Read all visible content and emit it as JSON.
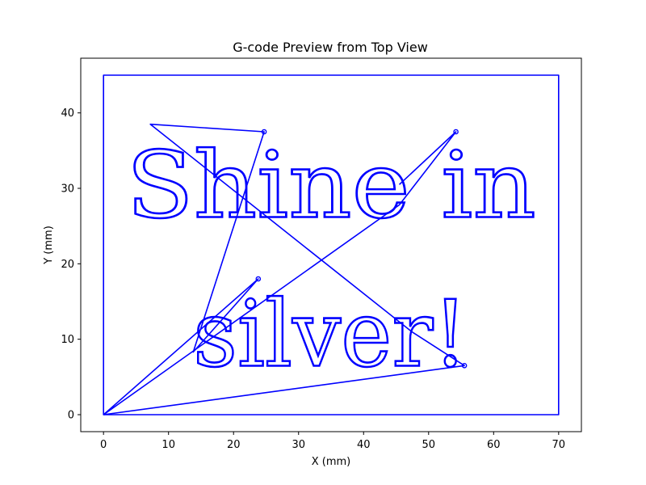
{
  "chart_data": {
    "type": "line",
    "title": "G-code Preview from Top View",
    "xlabel": "X (mm)",
    "ylabel": "Y (mm)",
    "xlim": [
      -3.5,
      73.5
    ],
    "ylim": [
      -2.25,
      47.25
    ],
    "xticks": [
      0,
      10,
      20,
      30,
      40,
      50,
      60,
      70
    ],
    "yticks": [
      0,
      10,
      20,
      30,
      40
    ],
    "grid": false,
    "line_color": "#0000ff",
    "series": [
      {
        "kind": "border",
        "x": [
          0,
          70,
          70,
          0,
          0
        ],
        "y": [
          0,
          0,
          45,
          45,
          0
        ]
      },
      {
        "kind": "travel",
        "x": [
          0,
          23.8,
          13.8,
          24.7,
          7.2,
          47.4,
          55.5,
          0,
          45.5,
          54.2,
          45.5
        ],
        "y": [
          0,
          18.0,
          8.3,
          37.5,
          38.5,
          11.0,
          6.5,
          0,
          27.8,
          37.5,
          30.5
        ]
      }
    ],
    "text_lines": [
      {
        "text": "Shine in",
        "x": 3.5,
        "y": 26.2,
        "width": 63.0
      },
      {
        "text": "silver!",
        "x": 13.8,
        "y": 6.5,
        "width": 42.2
      }
    ]
  }
}
